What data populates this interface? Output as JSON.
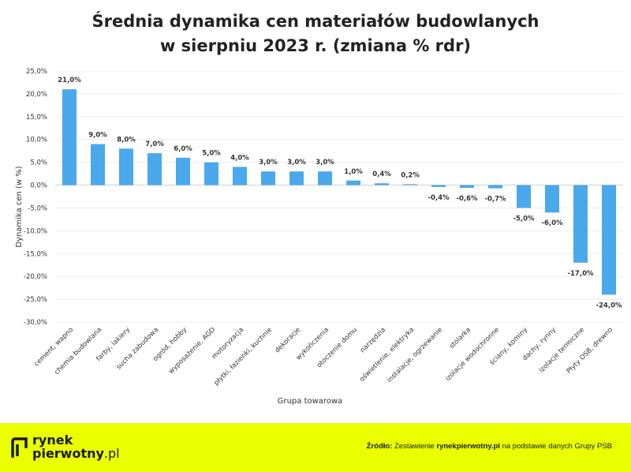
{
  "header": {
    "title_line1": "Średnia dynamika cen materiałów budowlanych",
    "title_line2": "w sierpniu 2023 r. (zmiana % rdr)"
  },
  "chart_data": {
    "type": "bar",
    "title": "Średnia dynamika cen materiałów budowlanych w sierpniu 2023 r. (zmiana % rdr)",
    "xlabel": "Grupa towarowa",
    "ylabel": "Dynamika cen (w %)",
    "ylim": [
      -30,
      25
    ],
    "yticks": [
      "25,0%",
      "20,0%",
      "15,0%",
      "10,0%",
      "5,0%",
      "0,0%",
      "-5,0%",
      "-10,0%",
      "-15,0%",
      "-20,0%",
      "-25,0%",
      "-30,0%"
    ],
    "categories": [
      "cement, wapno",
      "chemia budowlana",
      "farby, lakiery",
      "sucha zabudowa",
      "ogród, hobby",
      "wyposażenie, AGD",
      "motoryzacja",
      "płytki, łazienki, kuchnie",
      "dekoracje",
      "wykończenia",
      "otoczenie domu",
      "narzędzia",
      "oświetlenie, elektryka",
      "instalacje, ogrzewanie",
      "stolarka",
      "izolacje wodochronne",
      "ściany, kominy",
      "dachy, rynny",
      "izolacje termiczne",
      "Płyty OSB, drewno"
    ],
    "values": [
      21.0,
      9.0,
      8.0,
      7.0,
      6.0,
      5.0,
      4.0,
      3.0,
      3.0,
      3.0,
      1.0,
      0.4,
      0.2,
      -0.4,
      -0.6,
      -0.7,
      -5.0,
      -6.0,
      -17.0,
      -24.0
    ],
    "data_labels": [
      "21,0%",
      "9,0%",
      "8,0%",
      "7,0%",
      "6,0%",
      "5,0%",
      "4,0%",
      "3,0%",
      "3,0%",
      "3,0%",
      "1,0%",
      "0,4%",
      "0,2%",
      "-0,4%",
      "-0,6%",
      "-0,7%",
      "-5,0%",
      "-6,0%",
      "-17,0%",
      "-24,0%"
    ],
    "bar_color": "#4aa8ec",
    "grid": true
  },
  "footer": {
    "background": "#eaff00",
    "logo_line1": "rynek",
    "logo_line2_bold": "pierwotny",
    "logo_line2_suffix": ".pl",
    "source_label": "Źródło:",
    "source_text_1": "Zestawienie",
    "source_brand": "rynekpierwotny.pl",
    "source_text_2": "na podstawie danych Grupy PSB"
  }
}
